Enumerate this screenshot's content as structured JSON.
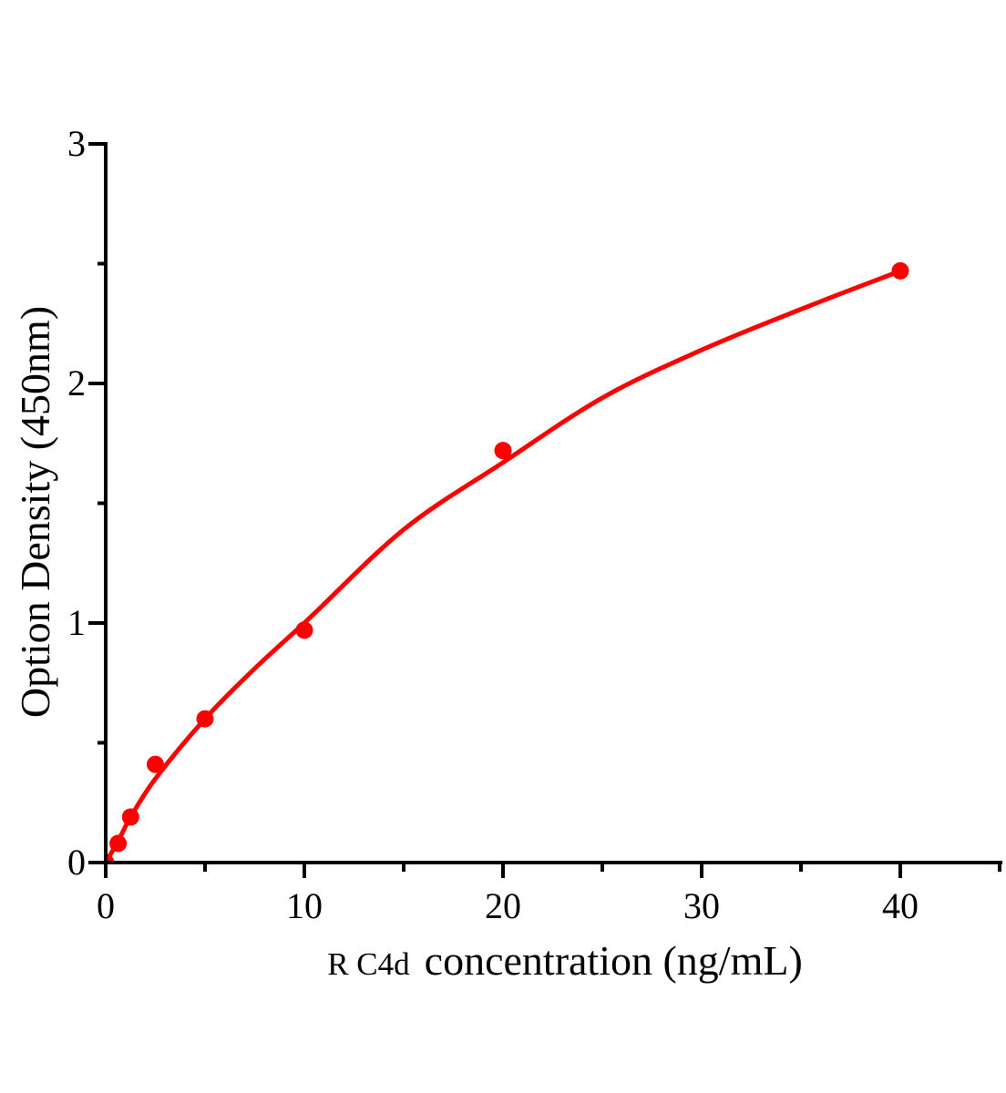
{
  "chart_data": {
    "type": "scatter",
    "title": "",
    "xlabel_prefix": "R C4d",
    "xlabel_main": "concentration (ng/mL)",
    "ylabel": "Option Density (450nm)",
    "grid": false,
    "legend": "none",
    "colors": {
      "series": "#ff0000",
      "axis": "#000000",
      "background": "#ffffff"
    },
    "x_axis": {
      "range": [
        0,
        45
      ],
      "major_ticks": [
        0,
        10,
        20,
        30,
        40
      ],
      "tick_labels": [
        "0",
        "10",
        "20",
        "30",
        "40"
      ],
      "minor_ticks": [
        5,
        15,
        25,
        35,
        45
      ]
    },
    "y_axis": {
      "range": [
        0,
        3
      ],
      "major_ticks": [
        0,
        1,
        2,
        3
      ],
      "tick_labels": [
        "0",
        "1",
        "2",
        "3"
      ],
      "minor_ticks": [
        0.5,
        1.5,
        2.5
      ]
    },
    "points": [
      {
        "x": 0,
        "y": 0.0
      },
      {
        "x": 0.625,
        "y": 0.08
      },
      {
        "x": 1.25,
        "y": 0.19
      },
      {
        "x": 2.5,
        "y": 0.41
      },
      {
        "x": 5,
        "y": 0.6
      },
      {
        "x": 10,
        "y": 0.97
      },
      {
        "x": 20,
        "y": 1.72
      },
      {
        "x": 40,
        "y": 2.47
      }
    ],
    "fit_curve": {
      "x": [
        0,
        0.625,
        1.25,
        2.5,
        5,
        7.5,
        10,
        15,
        20,
        25,
        30,
        35,
        40
      ],
      "y": [
        0,
        0.09,
        0.19,
        0.35,
        0.6,
        0.81,
        1.0,
        1.39,
        1.67,
        1.94,
        2.14,
        2.31,
        2.47
      ]
    }
  }
}
